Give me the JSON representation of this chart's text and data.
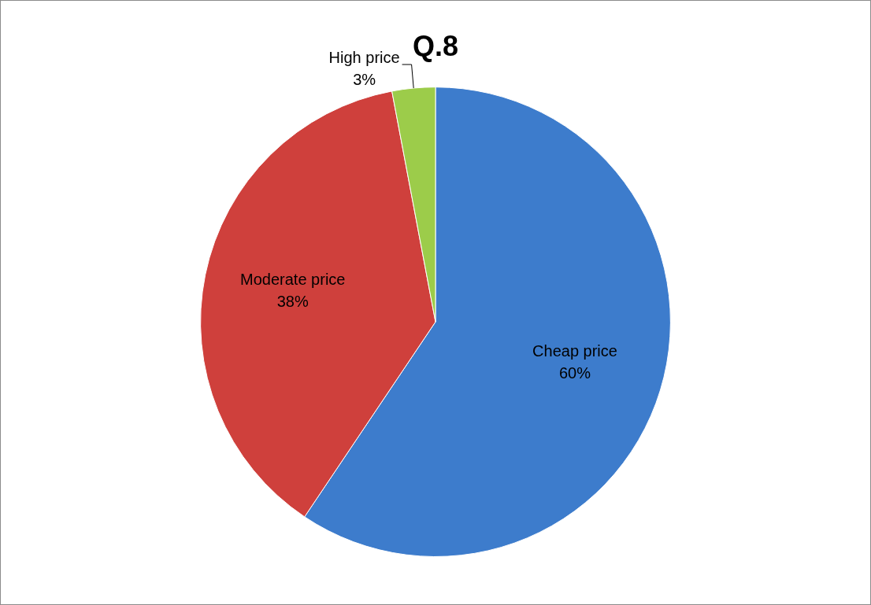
{
  "chart_data": {
    "type": "pie",
    "title": "Q.8",
    "categories": [
      "Cheap price",
      "Moderate price",
      "High price"
    ],
    "values": [
      60,
      38,
      3
    ],
    "value_labels": [
      "60%",
      "38%",
      "3%"
    ],
    "colors": [
      "#3d7ccc",
      "#cf403c",
      "#9ccc4a"
    ],
    "legend": false
  }
}
